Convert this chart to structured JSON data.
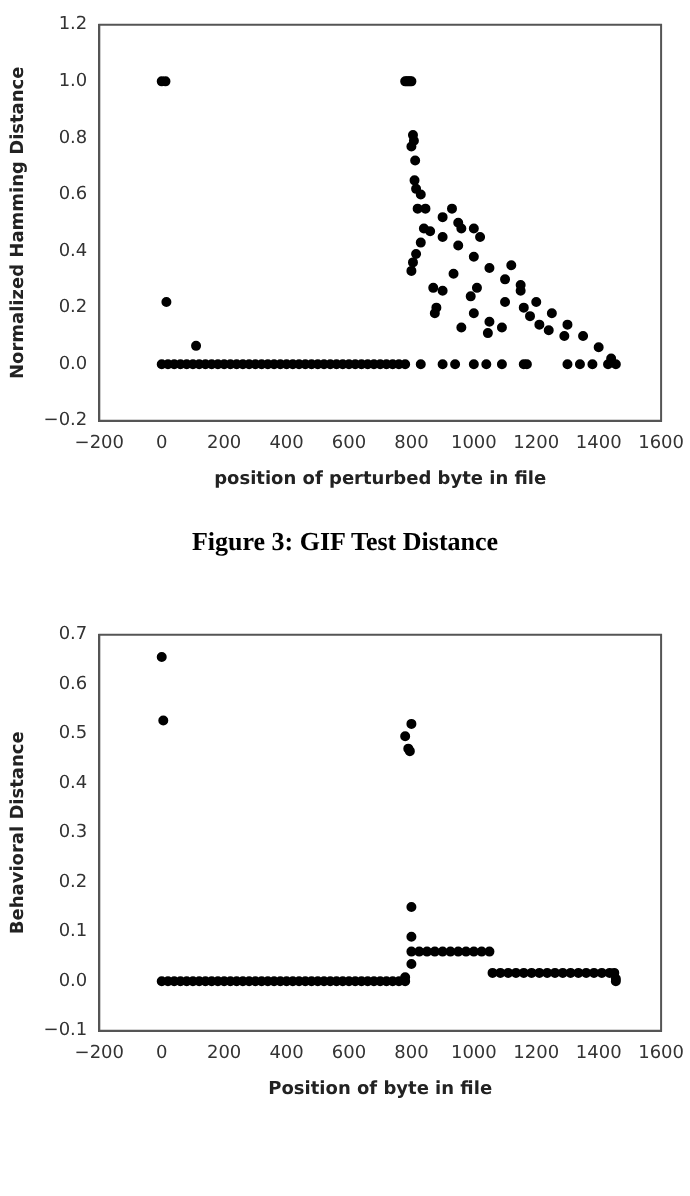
{
  "chart_data": [
    {
      "type": "scatter",
      "xlabel": "position of perturbed byte in file",
      "ylabel": "Normalized Hamming Distance",
      "color": "#000000",
      "marker": "circle",
      "grid": false,
      "annotations": [
        "Figure 3: GIF Test Distance"
      ],
      "x": [
        0,
        12,
        780,
        785,
        790,
        795,
        800,
        15,
        110,
        0,
        20,
        40,
        60,
        80,
        100,
        120,
        140,
        160,
        180,
        200,
        220,
        240,
        260,
        280,
        300,
        320,
        340,
        360,
        380,
        400,
        420,
        440,
        460,
        480,
        500,
        520,
        540,
        560,
        580,
        600,
        620,
        640,
        660,
        680,
        700,
        720,
        740,
        760,
        780,
        830,
        900,
        940,
        1000,
        1040,
        1090,
        1160,
        1170,
        1300,
        1340,
        1380,
        1430,
        800,
        805,
        808,
        812,
        810,
        815,
        820,
        830,
        845,
        800,
        805,
        815,
        830,
        840,
        860,
        900,
        950,
        1000,
        1050,
        1100,
        1150,
        1200,
        1250,
        1300,
        1350,
        1400,
        1440,
        1455,
        870,
        880,
        875,
        900,
        935,
        960,
        990,
        1000,
        1010,
        1045,
        1050,
        1090,
        1120,
        1100,
        1180,
        1160,
        1210,
        1240,
        1290,
        900,
        930,
        960,
        1000,
        1020,
        950,
        1150
      ],
      "values": [
        1,
        1,
        1,
        1,
        1,
        1,
        1,
        0.22,
        0.065,
        0,
        0,
        0,
        0,
        0,
        0,
        0,
        0,
        0,
        0,
        0,
        0,
        0,
        0,
        0,
        0,
        0,
        0,
        0,
        0,
        0,
        0,
        0,
        0,
        0,
        0,
        0,
        0,
        0,
        0,
        0,
        0,
        0,
        0,
        0,
        0,
        0,
        0,
        0,
        0,
        0,
        0,
        0,
        0,
        0,
        0,
        0,
        0,
        0,
        0,
        0,
        0,
        0.77,
        0.81,
        0.79,
        0.72,
        0.65,
        0.62,
        0.55,
        0.6,
        0.55,
        0.33,
        0.36,
        0.39,
        0.43,
        0.48,
        0.47,
        0.45,
        0.42,
        0.38,
        0.34,
        0.3,
        0.26,
        0.22,
        0.18,
        0.14,
        0.1,
        0.06,
        0.02,
        0,
        0.27,
        0.2,
        0.18,
        0.26,
        0.32,
        0.13,
        0.24,
        0.18,
        0.27,
        0.11,
        0.15,
        0.13,
        0.35,
        0.22,
        0.17,
        0.2,
        0.14,
        0.12,
        0.1,
        0.52,
        0.55,
        0.48,
        0.48,
        0.45,
        0.5,
        0.28
      ],
      "xlim": [
        -200,
        1600
      ],
      "xticks": [
        {
          "value": -200,
          "label": "−200"
        },
        0,
        200,
        400,
        600,
        800,
        1000,
        1200,
        1400,
        1600
      ],
      "ylim": [
        -0.2,
        1.2
      ],
      "yticks": [
        {
          "value": -0.2,
          "label": "−0.2"
        },
        {
          "value": 0,
          "label": "0.0"
        },
        0.2,
        0.4,
        0.6,
        0.8,
        {
          "value": 1,
          "label": "1.0"
        },
        1.2
      ]
    },
    {
      "type": "scatter",
      "xlabel": "Position of byte in file",
      "ylabel": "Behavioral Distance",
      "color": "#000000",
      "marker": "circle",
      "grid": false,
      "x": [
        0,
        5,
        0,
        20,
        40,
        60,
        80,
        100,
        120,
        140,
        160,
        180,
        200,
        220,
        240,
        260,
        280,
        300,
        320,
        340,
        360,
        380,
        400,
        420,
        440,
        460,
        480,
        500,
        520,
        540,
        560,
        580,
        600,
        620,
        640,
        660,
        680,
        700,
        720,
        740,
        760,
        780,
        780,
        790,
        795,
        800,
        800,
        800,
        800,
        780,
        800,
        825,
        850,
        875,
        900,
        925,
        950,
        975,
        1000,
        1025,
        1050,
        1060,
        1085,
        1110,
        1135,
        1160,
        1185,
        1210,
        1235,
        1260,
        1285,
        1310,
        1335,
        1360,
        1385,
        1410,
        1435,
        1450,
        1455,
        1455
      ],
      "values": [
        0.655,
        0.527,
        0,
        0,
        0,
        0,
        0,
        0,
        0,
        0,
        0,
        0,
        0,
        0,
        0,
        0,
        0,
        0,
        0,
        0,
        0,
        0,
        0,
        0,
        0,
        0,
        0,
        0,
        0,
        0,
        0,
        0,
        0,
        0,
        0,
        0,
        0,
        0,
        0,
        0,
        0,
        0,
        0.495,
        0.47,
        0.465,
        0.52,
        0.15,
        0.09,
        0.035,
        0.008,
        0.06,
        0.06,
        0.06,
        0.06,
        0.06,
        0.06,
        0.06,
        0.06,
        0.06,
        0.06,
        0.06,
        0.017,
        0.017,
        0.017,
        0.017,
        0.017,
        0.017,
        0.017,
        0.017,
        0.017,
        0.017,
        0.017,
        0.017,
        0.017,
        0.017,
        0.017,
        0.017,
        0.017,
        0.005,
        0
      ],
      "xlim": [
        -200,
        1600
      ],
      "xticks": [
        {
          "value": -200,
          "label": "−200"
        },
        0,
        200,
        400,
        600,
        800,
        1000,
        1200,
        1400,
        1600
      ],
      "ylim": [
        -0.1,
        0.7
      ],
      "yticks": [
        {
          "value": -0.1,
          "label": "−0.1"
        },
        {
          "value": 0,
          "label": "0.0"
        },
        0.1,
        0.2,
        0.3,
        0.4,
        0.5,
        0.6,
        0.7
      ]
    }
  ]
}
